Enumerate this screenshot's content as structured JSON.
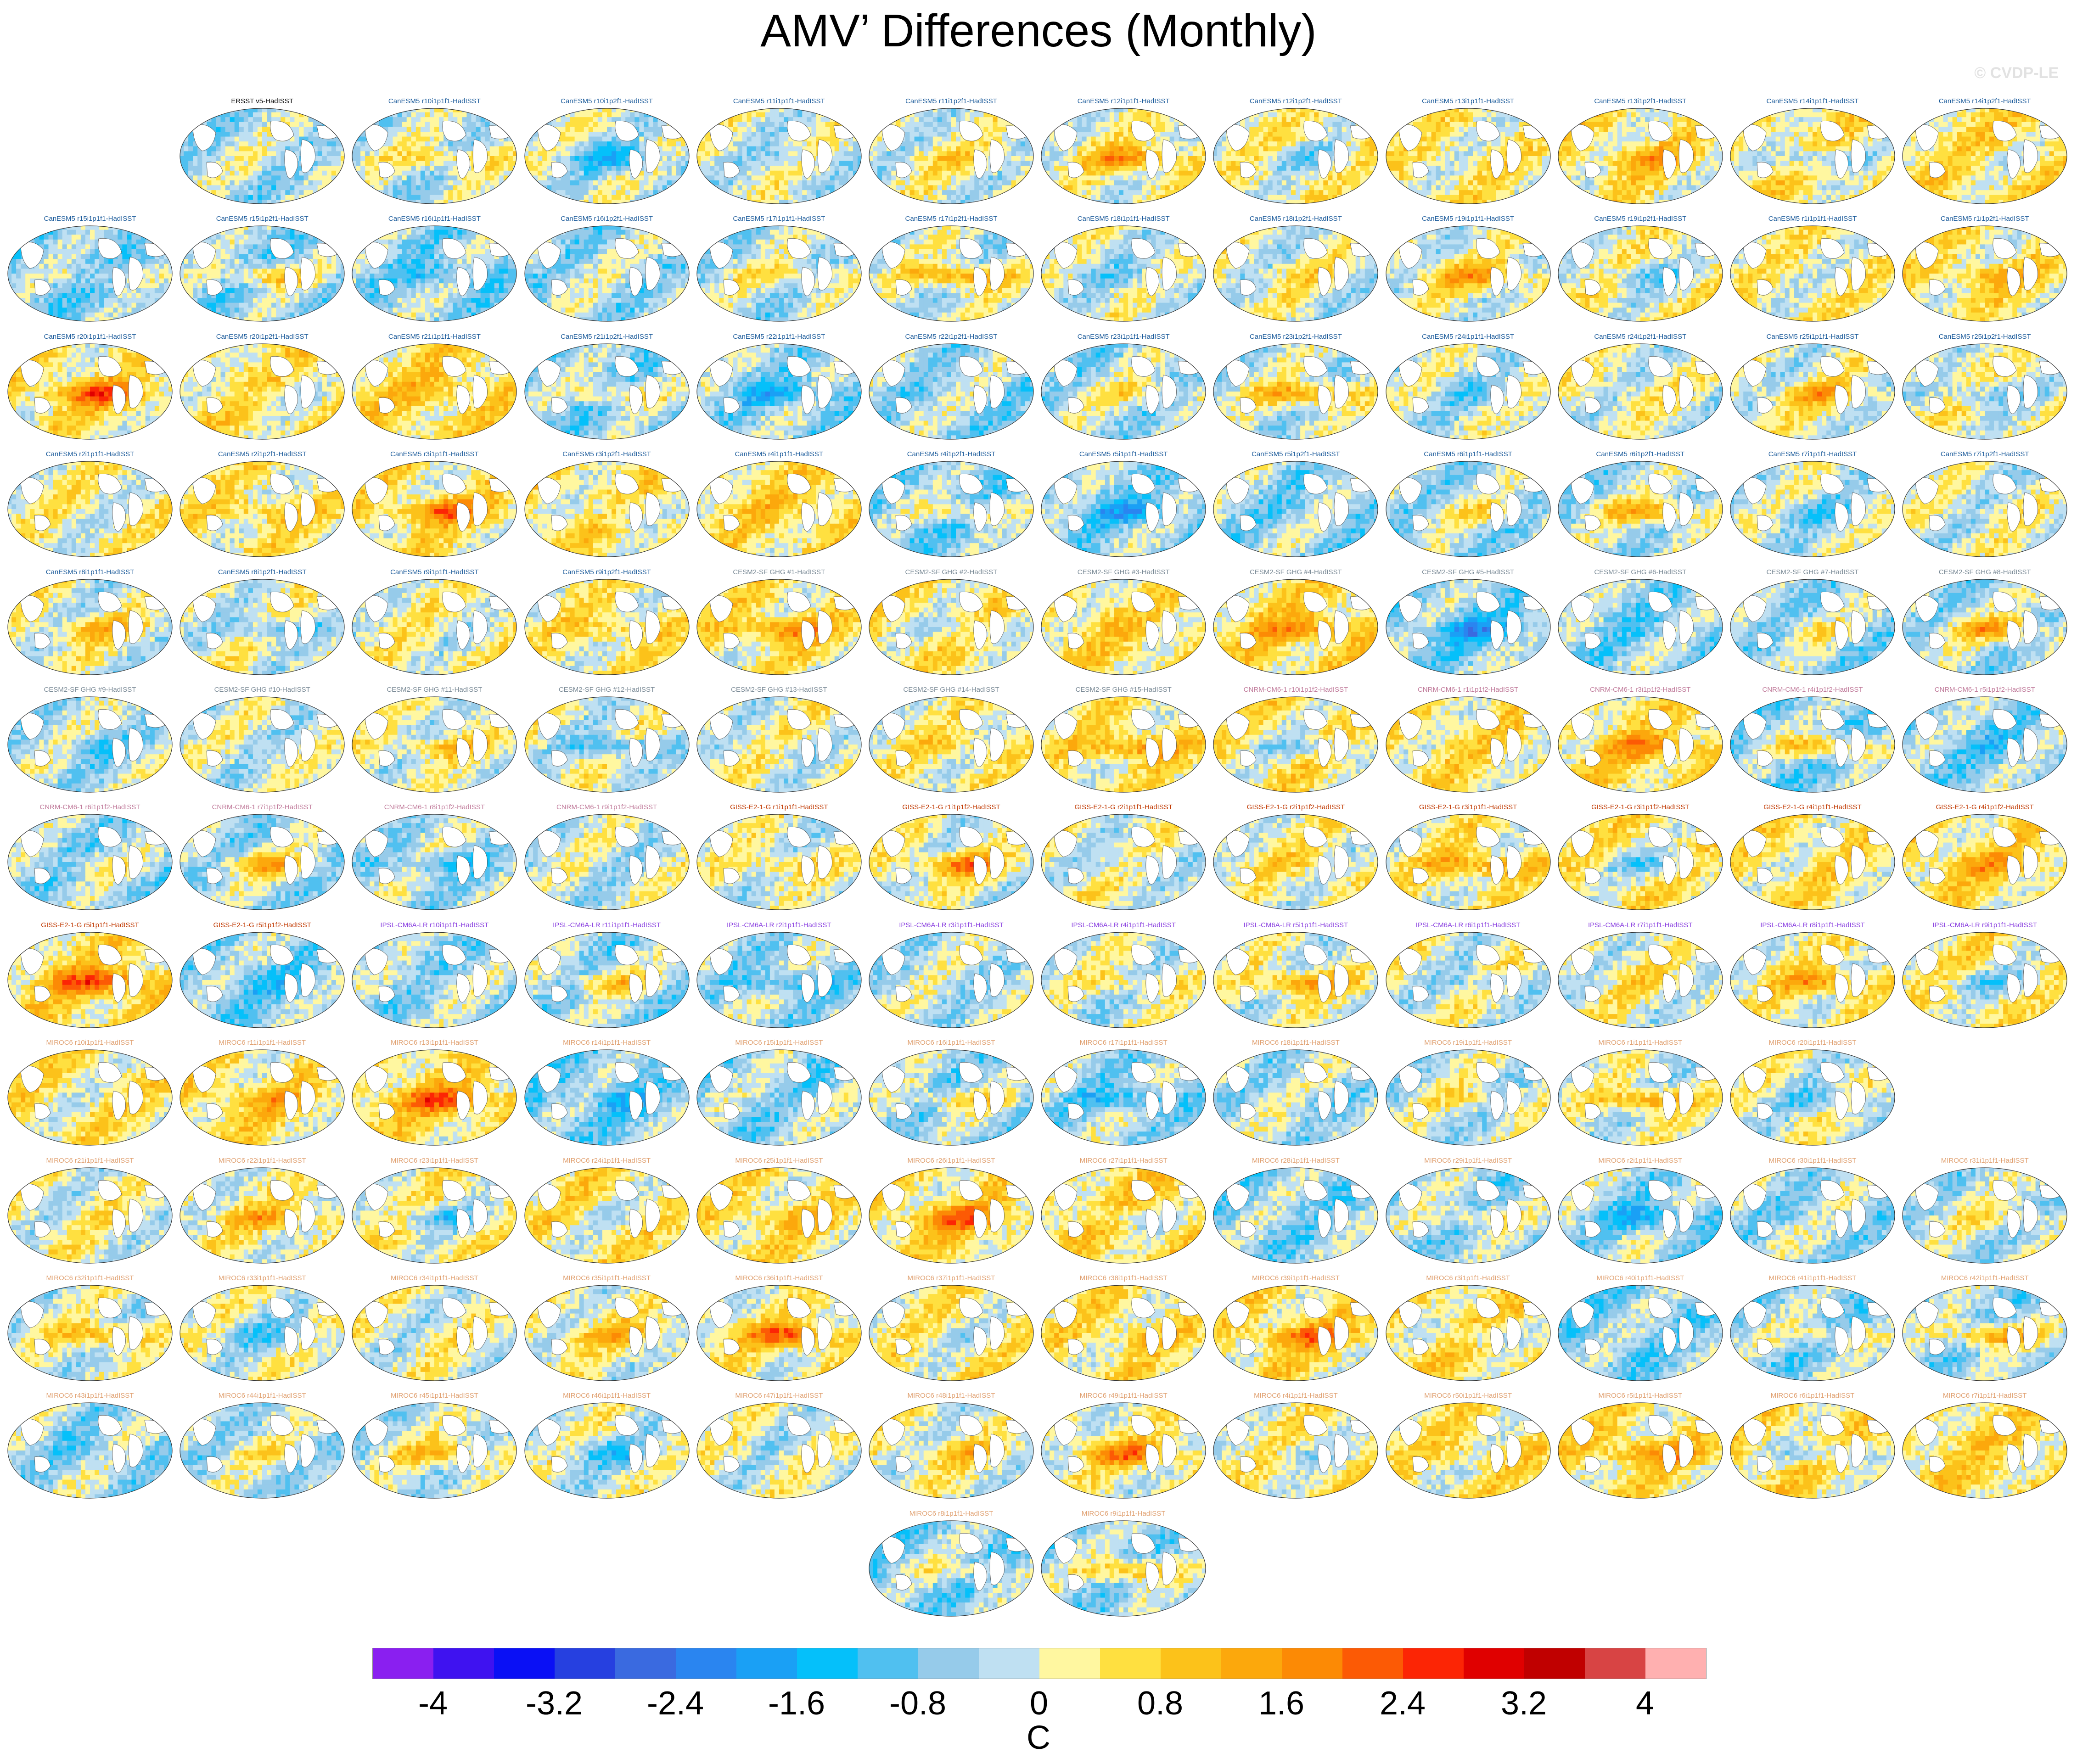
{
  "title": "AMV’ Differences (Monthly)",
  "watermark": "© CVDP-LE",
  "colorbar": {
    "units": "C",
    "tick_labels": [
      "-4",
      "-3.2",
      "-2.4",
      "-1.6",
      "-0.8",
      "0",
      "0.8",
      "1.6",
      "2.4",
      "3.2",
      "4"
    ],
    "colors": [
      "#8a1ff0",
      "#3f12f0",
      "#0a10f5",
      "#2640e0",
      "#3a6ae0",
      "#2a85f0",
      "#1aa0f5",
      "#05c0fa",
      "#50c0f0",
      "#96cbea",
      "#bfe0f2",
      "#fff7a0",
      "#ffe040",
      "#fcc21a",
      "#fca80c",
      "#fc8a05",
      "#fc5a05",
      "#fc2505",
      "#e00000",
      "#c00000",
      "#d84444",
      "#ffb0b0"
    ]
  },
  "model_colors": {
    "ERSST": "#000000",
    "CanESM5": "#1a5a9a",
    "CESM2": "#7a8a96",
    "CNRM": "#c07a9a",
    "GISS": "#c03800",
    "IPSL": "#8a40e0",
    "MIROC6": "#e0a070"
  },
  "panels": [
    "ERSST v5-HadISST",
    "CanESM5 r10i1p1f1-HadISST",
    "CanESM5 r10i1p2f1-HadISST",
    "CanESM5 r11i1p1f1-HadISST",
    "CanESM5 r11i1p2f1-HadISST",
    "CanESM5 r12i1p1f1-HadISST",
    "CanESM5 r12i1p2f1-HadISST",
    "CanESM5 r13i1p1f1-HadISST",
    "CanESM5 r13i1p2f1-HadISST",
    "CanESM5 r14i1p1f1-HadISST",
    "CanESM5 r14i1p2f1-HadISST",
    "CanESM5 r15i1p1f1-HadISST",
    "CanESM5 r15i1p2f1-HadISST",
    "CanESM5 r16i1p1f1-HadISST",
    "CanESM5 r16i1p2f1-HadISST",
    "CanESM5 r17i1p1f1-HadISST",
    "CanESM5 r17i1p2f1-HadISST",
    "CanESM5 r18i1p1f1-HadISST",
    "CanESM5 r18i1p2f1-HadISST",
    "CanESM5 r19i1p1f1-HadISST",
    "CanESM5 r19i1p2f1-HadISST",
    "CanESM5 r1i1p1f1-HadISST",
    "CanESM5 r1i1p2f1-HadISST",
    "CanESM5 r20i1p1f1-HadISST",
    "CanESM5 r20i1p2f1-HadISST",
    "CanESM5 r21i1p1f1-HadISST",
    "CanESM5 r21i1p2f1-HadISST",
    "CanESM5 r22i1p1f1-HadISST",
    "CanESM5 r22i1p2f1-HadISST",
    "CanESM5 r23i1p1f1-HadISST",
    "CanESM5 r23i1p2f1-HadISST",
    "CanESM5 r24i1p1f1-HadISST",
    "CanESM5 r24i1p2f1-HadISST",
    "CanESM5 r25i1p1f1-HadISST",
    "CanESM5 r25i1p2f1-HadISST",
    "CanESM5 r2i1p1f1-HadISST",
    "CanESM5 r2i1p2f1-HadISST",
    "CanESM5 r3i1p1f1-HadISST",
    "CanESM5 r3i1p2f1-HadISST",
    "CanESM5 r4i1p1f1-HadISST",
    "CanESM5 r4i1p2f1-HadISST",
    "CanESM5 r5i1p1f1-HadISST",
    "CanESM5 r5i1p2f1-HadISST",
    "CanESM5 r6i1p1f1-HadISST",
    "CanESM5 r6i1p2f1-HadISST",
    "CanESM5 r7i1p1f1-HadISST",
    "CanESM5 r7i1p2f1-HadISST",
    "CanESM5 r8i1p1f1-HadISST",
    "CanESM5 r8i1p2f1-HadISST",
    "CanESM5 r9i1p1f1-HadISST",
    "CanESM5 r9i1p2f1-HadISST",
    "CESM2-SF GHG #1-HadISST",
    "CESM2-SF GHG #2-HadISST",
    "CESM2-SF GHG #3-HadISST",
    "CESM2-SF GHG #4-HadISST",
    "CESM2-SF GHG #5-HadISST",
    "CESM2-SF GHG #6-HadISST",
    "CESM2-SF GHG #7-HadISST",
    "CESM2-SF GHG #8-HadISST",
    "CESM2-SF GHG #9-HadISST",
    "CESM2-SF GHG #10-HadISST",
    "CESM2-SF GHG #11-HadISST",
    "CESM2-SF GHG #12-HadISST",
    "CESM2-SF GHG #13-HadISST",
    "CESM2-SF GHG #14-HadISST",
    "CESM2-SF GHG #15-HadISST",
    "CNRM-CM6-1 r10i1p1f2-HadISST",
    "CNRM-CM6-1 r1i1p1f2-HadISST",
    "CNRM-CM6-1 r3i1p1f2-HadISST",
    "CNRM-CM6-1 r4i1p1f2-HadISST",
    "CNRM-CM6-1 r5i1p1f2-HadISST",
    "CNRM-CM6-1 r6i1p1f2-HadISST",
    "CNRM-CM6-1 r7i1p1f2-HadISST",
    "CNRM-CM6-1 r8i1p1f2-HadISST",
    "CNRM-CM6-1 r9i1p1f2-HadISST",
    "GISS-E2-1-G r1i1p1f1-HadISST",
    "GISS-E2-1-G r1i1p1f2-HadISST",
    "GISS-E2-1-G r2i1p1f1-HadISST",
    "GISS-E2-1-G r2i1p1f2-HadISST",
    "GISS-E2-1-G r3i1p1f1-HadISST",
    "GISS-E2-1-G r3i1p1f2-HadISST",
    "GISS-E2-1-G r4i1p1f1-HadISST",
    "GISS-E2-1-G r4i1p1f2-HadISST",
    "GISS-E2-1-G r5i1p1f1-HadISST",
    "GISS-E2-1-G r5i1p1f2-HadISST",
    "IPSL-CM6A-LR r10i1p1f1-HadISST",
    "IPSL-CM6A-LR r11i1p1f1-HadISST",
    "IPSL-CM6A-LR r2i1p1f1-HadISST",
    "IPSL-CM6A-LR r3i1p1f1-HadISST",
    "IPSL-CM6A-LR r4i1p1f1-HadISST",
    "IPSL-CM6A-LR r5i1p1f1-HadISST",
    "IPSL-CM6A-LR r6i1p1f1-HadISST",
    "IPSL-CM6A-LR r7i1p1f1-HadISST",
    "IPSL-CM6A-LR r8i1p1f1-HadISST",
    "IPSL-CM6A-LR r9i1p1f1-HadISST",
    "MIROC6 r10i1p1f1-HadISST",
    "MIROC6 r11i1p1f1-HadISST",
    "MIROC6 r13i1p1f1-HadISST",
    "MIROC6 r14i1p1f1-HadISST",
    "MIROC6 r15i1p1f1-HadISST",
    "MIROC6 r16i1p1f1-HadISST",
    "MIROC6 r17i1p1f1-HadISST",
    "MIROC6 r18i1p1f1-HadISST",
    "MIROC6 r19i1p1f1-HadISST",
    "MIROC6 r1i1p1f1-HadISST",
    "MIROC6 r20i1p1f1-HadISST",
    "MIROC6 r21i1p1f1-HadISST",
    "MIROC6 r22i1p1f1-HadISST",
    "MIROC6 r23i1p1f1-HadISST",
    "MIROC6 r24i1p1f1-HadISST",
    "MIROC6 r25i1p1f1-HadISST",
    "MIROC6 r26i1p1f1-HadISST",
    "MIROC6 r27i1p1f1-HadISST",
    "MIROC6 r28i1p1f1-HadISST",
    "MIROC6 r29i1p1f1-HadISST",
    "MIROC6 r2i1p1f1-HadISST",
    "MIROC6 r30i1p1f1-HadISST",
    "MIROC6 r31i1p1f1-HadISST",
    "MIROC6 r32i1p1f1-HadISST",
    "MIROC6 r33i1p1f1-HadISST",
    "MIROC6 r34i1p1f1-HadISST",
    "MIROC6 r35i1p1f1-HadISST",
    "MIROC6 r36i1p1f1-HadISST",
    "MIROC6 r37i1p1f1-HadISST",
    "MIROC6 r38i1p1f1-HadISST",
    "MIROC6 r39i1p1f1-HadISST",
    "MIROC6 r3i1p1f1-HadISST",
    "MIROC6 r40i1p1f1-HadISST",
    "MIROC6 r41i1p1f1-HadISST",
    "MIROC6 r42i1p1f1-HadISST",
    "MIROC6 r43i1p1f1-HadISST",
    "MIROC6 r44i1p1f1-HadISST",
    "MIROC6 r45i1p1f1-HadISST",
    "MIROC6 r46i1p1f1-HadISST",
    "MIROC6 r47i1p1f1-HadISST",
    "MIROC6 r48i1p1f1-HadISST",
    "MIROC6 r49i1p1f1-HadISST",
    "MIROC6 r4i1p1f1-HadISST",
    "MIROC6 r50i1p1f1-HadISST",
    "MIROC6 r5i1p1f1-HadISST",
    "MIROC6 r6i1p1f1-HadISST",
    "MIROC6 r7i1p1f1-HadISST",
    "MIROC6 r8i1p1f1-HadISST",
    "MIROC6 r9i1p1f1-HadISST"
  ]
}
